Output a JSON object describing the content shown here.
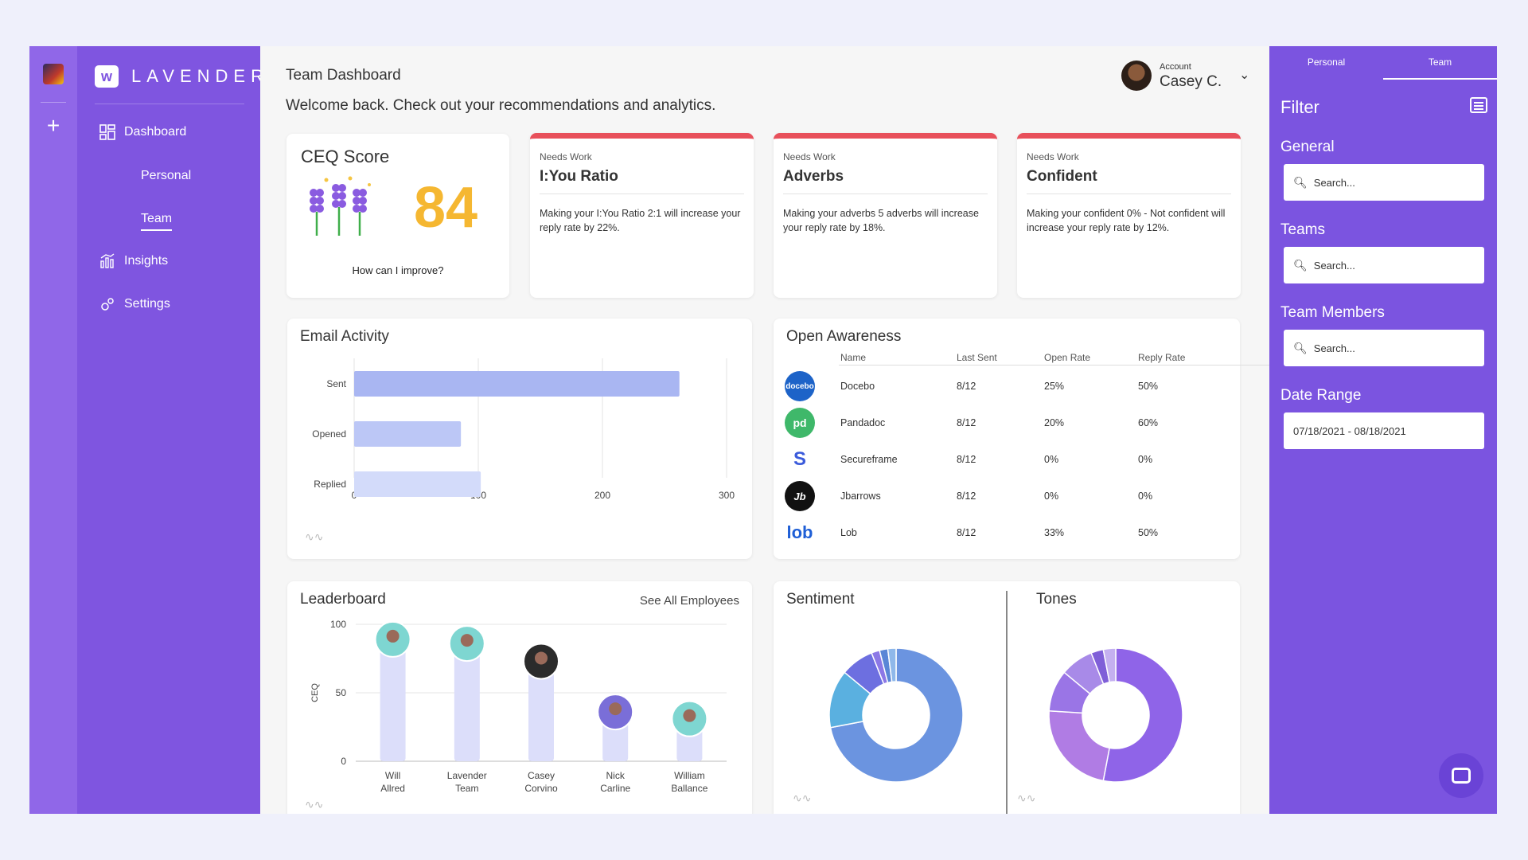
{
  "brand": {
    "name": "LAVENDER"
  },
  "nav": {
    "dashboard": "Dashboard",
    "personal": "Personal",
    "team": "Team",
    "insights": "Insights",
    "settings": "Settings"
  },
  "header": {
    "title": "Team Dashboard",
    "welcome": "Welcome back. Check out your recommendations and analytics.",
    "account_label": "Account",
    "account_name": "Casey C."
  },
  "ceq": {
    "title": "CEQ Score",
    "score": "84",
    "link": "How can I improve?"
  },
  "needs_work": [
    {
      "label": "Needs Work",
      "title": "I:You Ratio",
      "body": "Making your I:You Ratio 2:1 will increase your reply rate by 22%."
    },
    {
      "label": "Needs Work",
      "title": "Adverbs",
      "body": "Making your adverbs 5 adverbs will increase your reply rate by 18%."
    },
    {
      "label": "Needs Work",
      "title": "Confident",
      "body": "Making your confident 0% - Not confident will increase your reply rate by 12%."
    }
  ],
  "email_activity": {
    "title": "Email Activity"
  },
  "open_awareness": {
    "title": "Open Awareness",
    "headers": [
      "Name",
      "Last Sent",
      "Open Rate",
      "Reply Rate"
    ],
    "rows": [
      {
        "logo": "docebo",
        "name": "Docebo",
        "last_sent": "8/12",
        "open_rate": "25%",
        "reply_rate": "50%"
      },
      {
        "logo": "pd",
        "name": "Pandadoc",
        "last_sent": "8/12",
        "open_rate": "20%",
        "reply_rate": "60%"
      },
      {
        "logo": "S",
        "name": "Secureframe",
        "last_sent": "8/12",
        "open_rate": "0%",
        "reply_rate": "0%"
      },
      {
        "logo": "Jb",
        "name": "Jbarrows",
        "last_sent": "8/12",
        "open_rate": "0%",
        "reply_rate": "0%"
      },
      {
        "logo": "lob",
        "name": "Lob",
        "last_sent": "8/12",
        "open_rate": "33%",
        "reply_rate": "50%"
      }
    ]
  },
  "leaderboard": {
    "title": "Leaderboard",
    "see_all": "See All Employees"
  },
  "sentiment": {
    "title": "Sentiment"
  },
  "tones": {
    "title": "Tones"
  },
  "filter": {
    "tabs": [
      "Personal",
      "Team"
    ],
    "title": "Filter",
    "general": "General",
    "teams": "Teams",
    "team_members": "Team Members",
    "date_range": "Date Range",
    "search_placeholder": "Search...",
    "date_value": "07/18/2021 - 08/18/2021"
  },
  "colors": {
    "accent": "#7f55e0",
    "score": "#f5b731",
    "needs_work": "#e8505b",
    "bar": "#a9b6f2"
  },
  "chart_data": [
    {
      "type": "bar",
      "orientation": "horizontal",
      "title": "Email Activity",
      "categories": [
        "Sent",
        "Opened",
        "Replied"
      ],
      "values": [
        262,
        86,
        102
      ],
      "xlim": [
        0,
        300
      ],
      "xticks": [
        0,
        100,
        200,
        300
      ]
    },
    {
      "type": "bar",
      "title": "Leaderboard",
      "ylabel": "CEQ",
      "categories": [
        "Will Allred",
        "Lavender Team",
        "Casey Corvino",
        "Nick Carline",
        "William Ballance"
      ],
      "values": [
        89,
        86,
        73,
        36,
        31
      ],
      "ylim": [
        0,
        100
      ],
      "yticks": [
        0,
        50,
        100
      ]
    },
    {
      "type": "pie",
      "title": "Sentiment",
      "slices": [
        {
          "value": 72,
          "color": "#6b94e0"
        },
        {
          "value": 14,
          "color": "#5ab0e0"
        },
        {
          "value": 8,
          "color": "#6d6fe0"
        },
        {
          "value": 2,
          "color": "#8c78e6"
        },
        {
          "value": 2,
          "color": "#5a86d6"
        },
        {
          "value": 2,
          "color": "#8fb8ea"
        }
      ]
    },
    {
      "type": "pie",
      "title": "Tones",
      "slices": [
        {
          "value": 53,
          "color": "#8f64e8"
        },
        {
          "value": 23,
          "color": "#b07ce4"
        },
        {
          "value": 10,
          "color": "#9a75e6"
        },
        {
          "value": 8,
          "color": "#a88ae8"
        },
        {
          "value": 3,
          "color": "#7f5fd8"
        },
        {
          "value": 3,
          "color": "#c4b0f0"
        }
      ]
    }
  ]
}
